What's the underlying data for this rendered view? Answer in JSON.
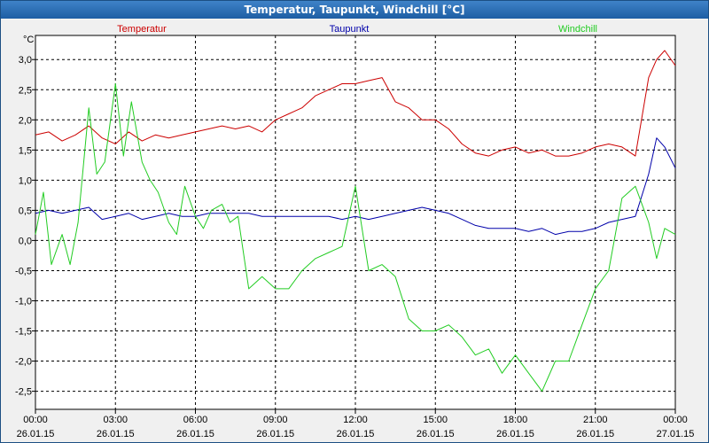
{
  "window": {
    "title": "Temperatur, Taupunkt, Windchill [°C]"
  },
  "chart_data": {
    "type": "line",
    "title": "Temperatur, Taupunkt, Windchill [°C]",
    "ylabel": "°C",
    "ylim": [
      -2.8,
      3.4
    ],
    "xlim": [
      0,
      24
    ],
    "y_ticks": [
      3.0,
      2.5,
      2.0,
      1.5,
      1.0,
      0.5,
      0.0,
      -0.5,
      -1.0,
      -1.5,
      -2.0,
      -2.5
    ],
    "y_tick_labels": [
      "3,0",
      "2,5",
      "2,0",
      "1,5",
      "1,0",
      "0,5",
      "0,0",
      "-0,5",
      "-1,0",
      "-1,5",
      "-2,0",
      "-2,5"
    ],
    "x_ticks": [
      {
        "x": 0,
        "time": "00:00",
        "date": "26.01.15"
      },
      {
        "x": 3,
        "time": "03:00",
        "date": "26.01.15"
      },
      {
        "x": 6,
        "time": "06:00",
        "date": "26.01.15"
      },
      {
        "x": 9,
        "time": "09:00",
        "date": "26.01.15"
      },
      {
        "x": 12,
        "time": "12:00",
        "date": "26.01.15"
      },
      {
        "x": 15,
        "time": "15:00",
        "date": "26.01.15"
      },
      {
        "x": 18,
        "time": "18:00",
        "date": "26.01.15"
      },
      {
        "x": 21,
        "time": "21:00",
        "date": "26.01.15"
      },
      {
        "x": 24,
        "time": "00:00",
        "date": "27.01.15"
      }
    ],
    "grid": true,
    "series": [
      {
        "name": "Temperatur",
        "color": "#cc0000",
        "legend": "left",
        "x": [
          0,
          0.5,
          1,
          1.5,
          2,
          2.5,
          3,
          3.5,
          4,
          4.5,
          5,
          5.5,
          6,
          6.5,
          7,
          7.5,
          8,
          8.5,
          9,
          9.5,
          10,
          10.5,
          11,
          11.5,
          12,
          12.5,
          13,
          13.5,
          14,
          14.5,
          15,
          15.5,
          16,
          16.5,
          17,
          17.5,
          18,
          18.5,
          19,
          19.5,
          20,
          20.5,
          21,
          21.5,
          22,
          22.5,
          23,
          23.3,
          23.6,
          24
        ],
        "values": [
          1.75,
          1.8,
          1.65,
          1.75,
          1.9,
          1.7,
          1.6,
          1.8,
          1.65,
          1.75,
          1.7,
          1.75,
          1.8,
          1.85,
          1.9,
          1.85,
          1.9,
          1.8,
          2.0,
          2.1,
          2.2,
          2.4,
          2.5,
          2.6,
          2.6,
          2.65,
          2.7,
          2.3,
          2.2,
          2.0,
          2.0,
          1.85,
          1.6,
          1.45,
          1.4,
          1.5,
          1.55,
          1.45,
          1.5,
          1.4,
          1.4,
          1.45,
          1.55,
          1.6,
          1.55,
          1.4,
          2.7,
          3.0,
          3.15,
          2.9
        ]
      },
      {
        "name": "Taupunkt",
        "color": "#0000aa",
        "legend": "center",
        "x": [
          0,
          0.5,
          1,
          1.5,
          2,
          2.5,
          3,
          3.5,
          4,
          4.5,
          5,
          5.5,
          6,
          6.5,
          7,
          7.5,
          8,
          8.5,
          9,
          9.5,
          10,
          10.5,
          11,
          11.5,
          12,
          12.5,
          13,
          13.5,
          14,
          14.5,
          15,
          15.5,
          16,
          16.5,
          17,
          17.5,
          18,
          18.5,
          19,
          19.5,
          20,
          20.5,
          21,
          21.5,
          22,
          22.5,
          23,
          23.3,
          23.6,
          24
        ],
        "values": [
          0.45,
          0.5,
          0.45,
          0.5,
          0.55,
          0.35,
          0.4,
          0.45,
          0.35,
          0.4,
          0.45,
          0.4,
          0.4,
          0.45,
          0.45,
          0.45,
          0.45,
          0.4,
          0.4,
          0.4,
          0.4,
          0.4,
          0.4,
          0.35,
          0.4,
          0.35,
          0.4,
          0.45,
          0.5,
          0.55,
          0.5,
          0.45,
          0.35,
          0.25,
          0.2,
          0.2,
          0.2,
          0.15,
          0.2,
          0.1,
          0.15,
          0.15,
          0.2,
          0.3,
          0.35,
          0.4,
          1.1,
          1.7,
          1.55,
          1.2
        ]
      },
      {
        "name": "Windchill",
        "color": "#22cc22",
        "legend": "right",
        "x": [
          0,
          0.3,
          0.6,
          1,
          1.3,
          1.6,
          2,
          2.3,
          2.6,
          3,
          3.3,
          3.6,
          4,
          4.3,
          4.6,
          5,
          5.3,
          5.6,
          6,
          6.3,
          6.6,
          7,
          7.3,
          7.6,
          8,
          8.5,
          9,
          9.5,
          10,
          10.5,
          11,
          11.5,
          12,
          12.5,
          13,
          13.5,
          14,
          14.5,
          15,
          15.5,
          16,
          16.5,
          17,
          17.5,
          18,
          18.5,
          19,
          19.5,
          20,
          20.5,
          21,
          21.5,
          22,
          22.5,
          23,
          23.3,
          23.6,
          24
        ],
        "values": [
          0.1,
          0.8,
          -0.4,
          0.1,
          -0.4,
          0.3,
          2.2,
          1.1,
          1.3,
          2.6,
          1.4,
          2.3,
          1.3,
          1.0,
          0.8,
          0.3,
          0.1,
          0.9,
          0.4,
          0.2,
          0.5,
          0.6,
          0.3,
          0.4,
          -0.8,
          -0.6,
          -0.8,
          -0.8,
          -0.5,
          -0.3,
          -0.2,
          -0.1,
          0.9,
          -0.5,
          -0.4,
          -0.6,
          -1.3,
          -1.5,
          -1.5,
          -1.4,
          -1.6,
          -1.9,
          -1.8,
          -2.2,
          -1.9,
          -2.2,
          -2.5,
          -2.0,
          -2.0,
          -1.4,
          -0.8,
          -0.5,
          0.7,
          0.9,
          0.3,
          -0.3,
          0.2,
          0.1
        ]
      }
    ]
  }
}
